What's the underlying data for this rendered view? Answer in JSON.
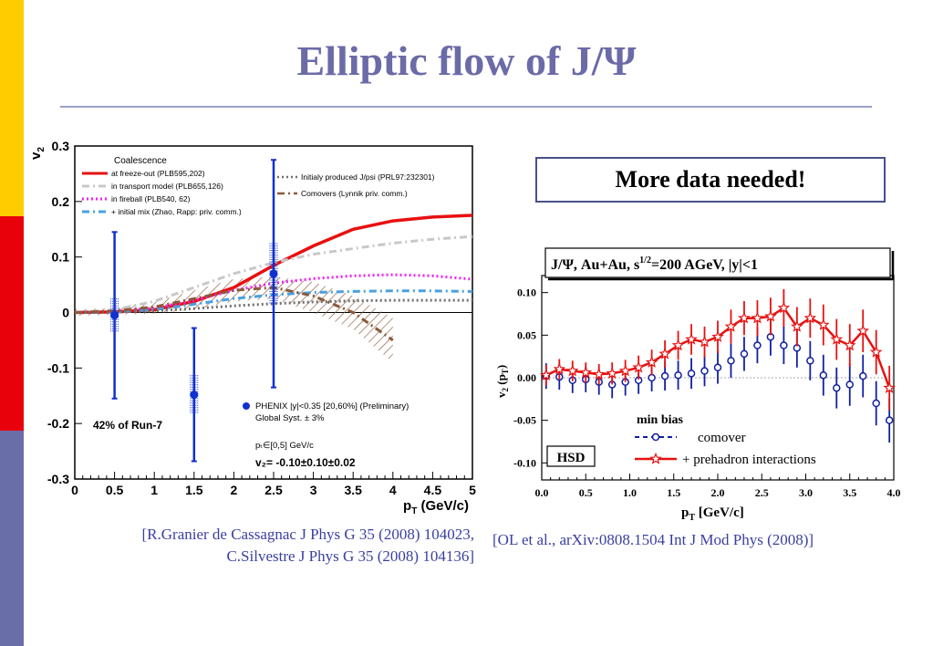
{
  "slide": {
    "title": "Elliptic flow of J/Ψ",
    "note": "More data needed!",
    "ref_left": [
      "[R.Granier de Cassagnac J Phys G 35 (2008) 104023,",
      "C.Silvestre J Phys G 35 (2008) 104136]"
    ],
    "ref_right": "[OL et al., arXiv:0808.1504  Int J Mod Phys (2008)]",
    "colors": {
      "title": "#6b6ba8",
      "accent_yellow": "#ffcc00",
      "accent_red": "#e8000b",
      "accent_blue": "#6a6ea8"
    }
  },
  "chart_data": [
    {
      "type": "line",
      "xlabel_main": "p",
      "xlabel_sub": "T",
      "xlabel_unit": " (GeV/c)",
      "ylabel_main": "v",
      "ylabel_sub": "2",
      "xlim": [
        0,
        5
      ],
      "ylim": [
        -0.3,
        0.3
      ],
      "xticks": [
        0,
        0.5,
        1,
        1.5,
        2,
        2.5,
        3,
        3.5,
        4,
        4.5,
        5
      ],
      "xtick_labels": [
        "0",
        "0.5",
        "1",
        "1.5",
        "2",
        "2.5",
        "3",
        "3.5",
        "4",
        "4.5",
        "5"
      ],
      "yticks": [
        -0.3,
        -0.2,
        -0.1,
        0,
        0.1,
        0.2,
        0.3
      ],
      "ytick_labels": [
        "-0.3",
        "-0.2",
        "-0.1",
        "0",
        "0.1",
        "0.2",
        "0.3"
      ],
      "legend_title": "Coalescence",
      "series": [
        {
          "name": "at freeze-out (PLB595,202)",
          "color": "#e81010",
          "style": "solid",
          "x": [
            0,
            0.5,
            1,
            1.5,
            2,
            2.5,
            3,
            3.5,
            4,
            4.5,
            5
          ],
          "y": [
            0,
            0.001,
            0.005,
            0.02,
            0.045,
            0.085,
            0.12,
            0.15,
            0.165,
            0.172,
            0.175
          ]
        },
        {
          "name": "in transport model (PLB655,126)",
          "color": "#c8c8c8",
          "style": "dashdot",
          "x": [
            0,
            0.5,
            1,
            1.5,
            2,
            2.5,
            3,
            3.5,
            4,
            4.5,
            5
          ],
          "y": [
            0,
            0.005,
            0.02,
            0.045,
            0.07,
            0.09,
            0.105,
            0.115,
            0.125,
            0.132,
            0.137
          ]
        },
        {
          "name": "in fireball (PLB540, 62)",
          "color": "#ee22ee",
          "style": "dotted",
          "x": [
            0,
            0.5,
            1,
            1.5,
            2,
            2.5,
            3,
            3.5,
            4,
            4.5,
            5
          ],
          "y": [
            0,
            0.002,
            0.008,
            0.022,
            0.04,
            0.053,
            0.061,
            0.066,
            0.068,
            0.066,
            0.06
          ]
        },
        {
          "name": "+ initial mix (Zhao, Rapp: priv. comm.)",
          "color": "#4aa0e0",
          "style": "dashdot",
          "x": [
            0,
            0.5,
            1,
            1.5,
            2,
            2.5,
            3,
            3.5,
            4,
            4.5,
            5
          ],
          "y": [
            0,
            0.001,
            0.005,
            0.015,
            0.025,
            0.032,
            0.036,
            0.038,
            0.039,
            0.039,
            0.038
          ]
        },
        {
          "name": "Initialy produced J/psi (PRL97:232301)",
          "color": "#707070",
          "style": "dotted",
          "x": [
            0,
            0.5,
            1,
            1.5,
            2,
            2.5,
            3,
            3.5,
            4,
            4.5,
            5
          ],
          "y": [
            0,
            0.001,
            0.003,
            0.007,
            0.012,
            0.016,
            0.019,
            0.021,
            0.022,
            0.022,
            0.022
          ]
        },
        {
          "name": "Comovers (Lynnik priv. comm.)",
          "color": "#8b5a3c",
          "style": "dashdot",
          "x": [
            0,
            0.5,
            1,
            1.5,
            2,
            2.5,
            3,
            3.5,
            4
          ],
          "y": [
            0,
            0.003,
            0.01,
            0.025,
            0.04,
            0.045,
            0.03,
            0.0,
            -0.05
          ]
        }
      ],
      "band": {
        "x": [
          0,
          0.5,
          1,
          1.5,
          2,
          2.5,
          3,
          3.5,
          4
        ],
        "lo": [
          -0.006,
          -0.004,
          -0.002,
          0.005,
          0.02,
          0.025,
          0.0,
          -0.03,
          -0.09
        ],
        "hi": [
          0.006,
          0.008,
          0.018,
          0.04,
          0.06,
          0.065,
          0.055,
          0.03,
          -0.01
        ],
        "color": "#8b5a3c"
      },
      "points": {
        "name": "PHENIX |y|<0.35 [20,60%] (Preliminary)",
        "name2": "Global Syst. ± 3%",
        "color": "#1030d0",
        "x": [
          0.5,
          1.5,
          2.5
        ],
        "y": [
          -0.005,
          -0.148,
          0.07
        ],
        "stat_err": [
          0.15,
          0.12,
          0.205
        ],
        "syst_err": [
          0.03,
          0.035,
          0.055
        ]
      },
      "annotations": {
        "run": "42% of Run-7",
        "pt_range": "pₜ∈[0,5] GeV/c",
        "v2_result": "v₂= -0.10±0.10±0.02"
      }
    },
    {
      "type": "line",
      "title": "J/Ψ,  Au+Au, s",
      "title_sup": "1/2",
      "title_rest": "=200 AGeV, |y|<1",
      "xlabel_main": "p",
      "xlabel_sub": "T",
      "xlabel_unit": " [GeV/c]",
      "ylabel": "v",
      "ylabel_sub": "2",
      "ylabel_rest": " (p",
      "ylabel_sub2": "T",
      "ylabel_end": ")",
      "xlim": [
        0,
        4
      ],
      "ylim": [
        -0.12,
        0.12
      ],
      "xticks": [
        0,
        0.5,
        1,
        1.5,
        2,
        2.5,
        3,
        3.5,
        4
      ],
      "xtick_labels": [
        "0.0",
        "0.5",
        "1.0",
        "1.5",
        "2.0",
        "2.5",
        "3.0",
        "3.5",
        "4.0"
      ],
      "yticks": [
        -0.1,
        -0.05,
        0,
        0.05,
        0.1
      ],
      "ytick_labels": [
        "-0.10",
        "-0.05",
        "0.00",
        "0.05",
        "0.10"
      ],
      "legend_title": "min bias",
      "model_label": "HSD",
      "series": [
        {
          "name": "comover",
          "color": "#1020a0",
          "marker": "circle",
          "x": [
            0.05,
            0.2,
            0.35,
            0.5,
            0.65,
            0.8,
            0.95,
            1.1,
            1.25,
            1.4,
            1.55,
            1.7,
            1.85,
            2.0,
            2.15,
            2.3,
            2.45,
            2.6,
            2.75,
            2.9,
            3.05,
            3.2,
            3.35,
            3.5,
            3.65,
            3.8,
            3.95
          ],
          "y": [
            0.002,
            0.001,
            -0.003,
            -0.002,
            -0.005,
            -0.008,
            -0.005,
            -0.003,
            0.0,
            0.002,
            0.003,
            0.005,
            0.008,
            0.012,
            0.02,
            0.028,
            0.038,
            0.048,
            0.038,
            0.035,
            0.02,
            0.003,
            -0.012,
            -0.008,
            0.002,
            -0.03,
            -0.05
          ],
          "err": [
            0.015,
            0.015,
            0.015,
            0.015,
            0.015,
            0.016,
            0.016,
            0.016,
            0.016,
            0.017,
            0.017,
            0.018,
            0.018,
            0.019,
            0.02,
            0.02,
            0.021,
            0.022,
            0.022,
            0.023,
            0.023,
            0.024,
            0.024,
            0.025,
            0.025,
            0.026,
            0.026
          ]
        },
        {
          "name": "+ prehadron interactions",
          "color": "#e81010",
          "marker": "star",
          "x": [
            0.05,
            0.2,
            0.35,
            0.5,
            0.65,
            0.8,
            0.95,
            1.1,
            1.25,
            1.4,
            1.55,
            1.7,
            1.85,
            2.0,
            2.15,
            2.3,
            2.45,
            2.6,
            2.75,
            2.9,
            3.05,
            3.2,
            3.35,
            3.5,
            3.65,
            3.8,
            3.95
          ],
          "y": [
            0.003,
            0.01,
            0.008,
            0.006,
            0.004,
            0.005,
            0.008,
            0.012,
            0.018,
            0.028,
            0.038,
            0.045,
            0.042,
            0.048,
            0.06,
            0.07,
            0.07,
            0.072,
            0.082,
            0.06,
            0.07,
            0.062,
            0.045,
            0.038,
            0.055,
            0.03,
            -0.012
          ],
          "err": [
            0.012,
            0.012,
            0.012,
            0.012,
            0.012,
            0.013,
            0.013,
            0.014,
            0.015,
            0.016,
            0.017,
            0.018,
            0.018,
            0.019,
            0.02,
            0.02,
            0.021,
            0.022,
            0.022,
            0.023,
            0.023,
            0.024,
            0.024,
            0.025,
            0.025,
            0.026,
            0.026
          ]
        }
      ]
    }
  ]
}
